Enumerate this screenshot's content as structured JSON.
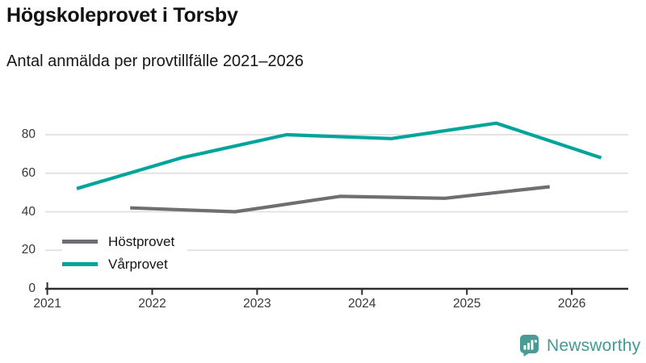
{
  "chart_data": {
    "type": "line",
    "title": "Högskoleprovet i Torsby",
    "subtitle": "Antal anmälda per provtillfälle 2021–2026",
    "x_ticks": [
      2021,
      2022,
      2023,
      2024,
      2025,
      2026
    ],
    "y_ticks": [
      0,
      20,
      40,
      60,
      80
    ],
    "xlim": [
      2021,
      2026.55
    ],
    "ylim": [
      0,
      93
    ],
    "grid": "horizontal",
    "legend_position": "inside-bottom-left",
    "series": [
      {
        "name": "Höstprovet",
        "color": "#6e6e73",
        "x": [
          2021.79,
          2022.79,
          2023.79,
          2024.79,
          2025.79
        ],
        "values": [
          42,
          40,
          48,
          47,
          53
        ]
      },
      {
        "name": "Vårprovet",
        "color": "#00a49b",
        "x": [
          2021.28,
          2022.28,
          2023.28,
          2024.28,
          2025.28,
          2026.28
        ],
        "values": [
          52,
          68,
          80,
          78,
          86,
          68
        ]
      }
    ],
    "axis_color": "#2d2d2d",
    "gridline_color": "#e0e0e0"
  },
  "footer": {
    "brand": "Newsworthy",
    "brand_color": "#429a93"
  }
}
